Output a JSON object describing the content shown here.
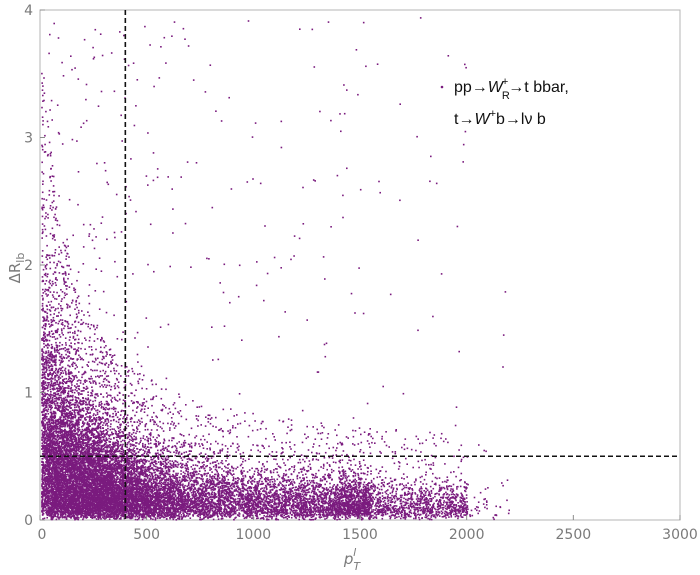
{
  "chart_data": {
    "type": "scatter",
    "title": "",
    "xlabel": "p_T^l",
    "ylabel": "ΔR_lb",
    "xlim": [
      0,
      3000
    ],
    "ylim": [
      0,
      4
    ],
    "x_ticks": [
      0,
      500,
      1000,
      1500,
      2000,
      2500,
      3000
    ],
    "y_ticks": [
      0,
      1,
      2,
      3,
      4
    ],
    "grid": false,
    "legend_position": "top-right",
    "legend": {
      "line1": "pp→W_R^+→t bbar,",
      "line2": "t→W^+b→lν b"
    },
    "cut_lines": {
      "x": 400,
      "y": 0.5
    },
    "series": [
      {
        "name": "pp→W_R^+→t bbar, t→W^+b→lν b",
        "color": "#7a1b7e",
        "distribution": {
          "x_concentrated_range": [
            0,
            1800
          ],
          "y_dense_band": [
            0,
            0.5
          ],
          "max_x": 2200,
          "max_y": 4.0,
          "n_points_approx": 18000
        }
      }
    ]
  },
  "colors": {
    "points": "#7a1b7e",
    "axis": "#8c8c8c",
    "cut_line": "#111111"
  }
}
